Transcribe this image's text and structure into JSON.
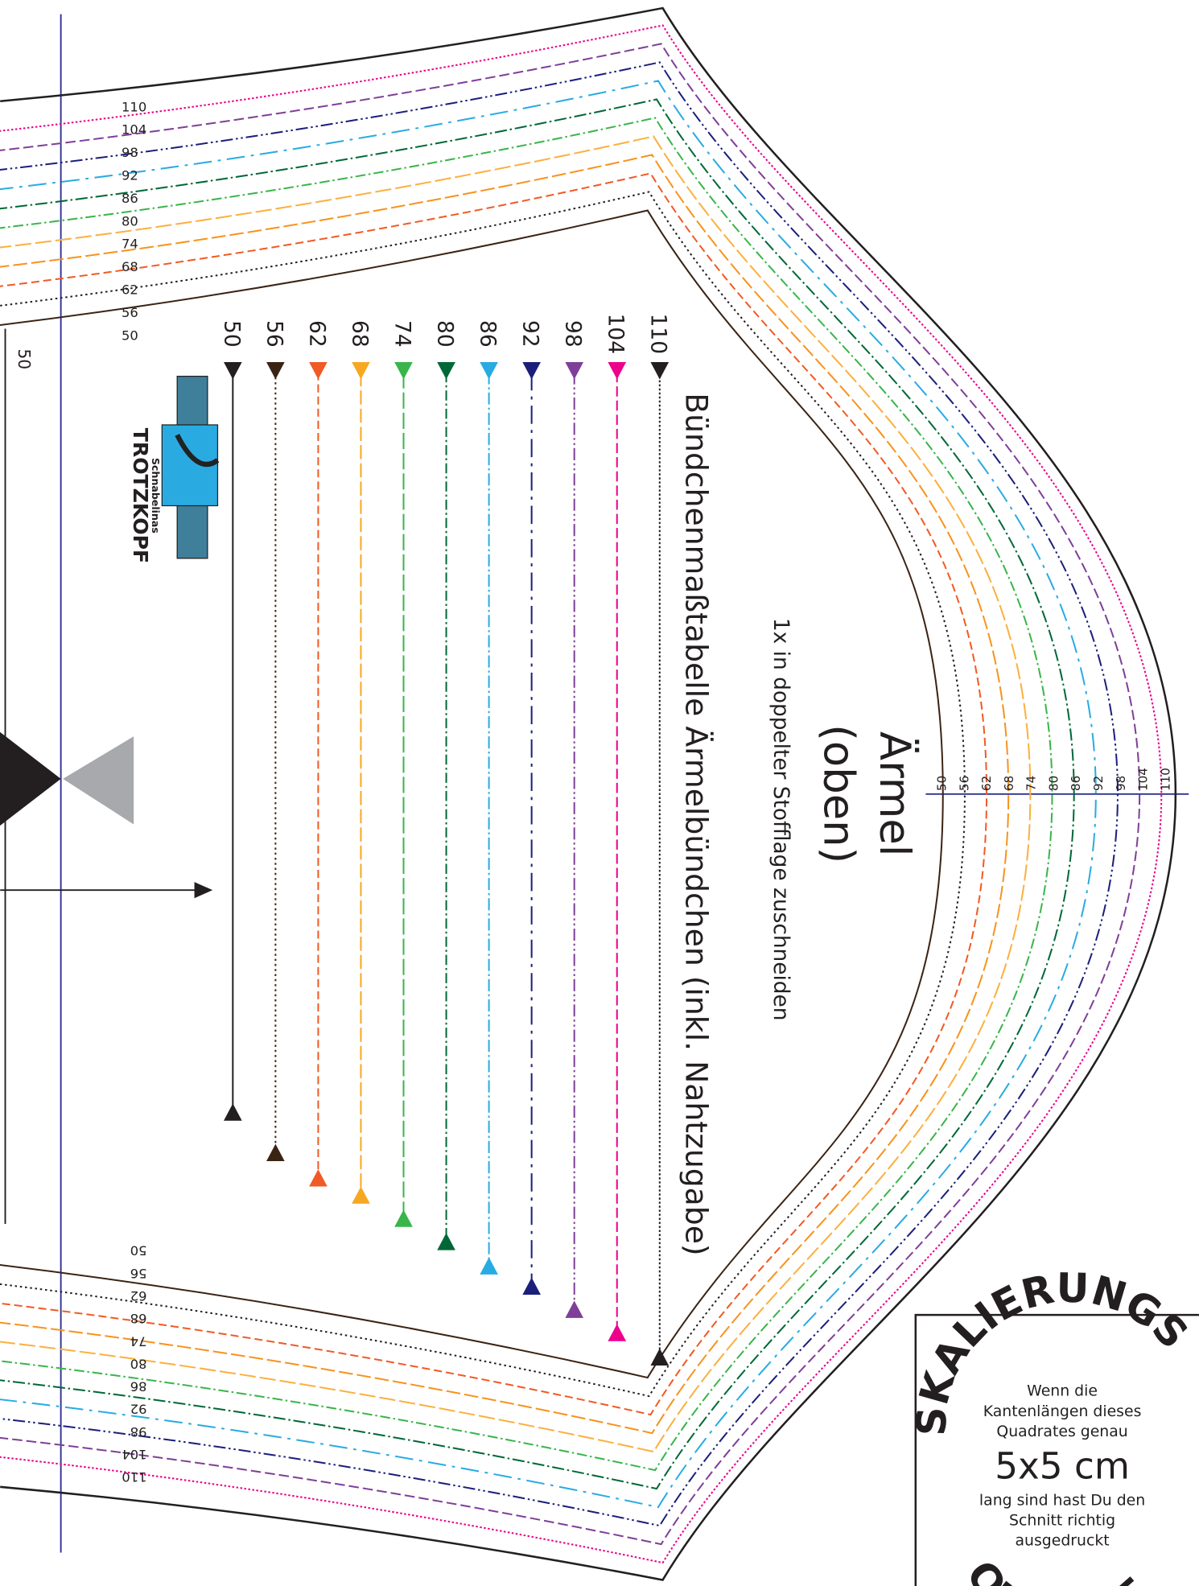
{
  "title": "Ärmel",
  "subtitle": "(oben)",
  "instruction": "1x in doppelter Stofflage zuschneiden",
  "cuff_table_title": "Bündchenmaßtabelle Ärmelbündchen (inkl. Nahtzugabe)",
  "left_label": "50",
  "sizes": [
    "50",
    "56",
    "62",
    "68",
    "74",
    "80",
    "86",
    "92",
    "98",
    "104",
    "110"
  ],
  "cuff_colors": [
    "#231f20",
    "#3b2314",
    "#f15a24",
    "#f7a823",
    "#39b54a",
    "#006837",
    "#29abe2",
    "#1b1f7a",
    "#7f3f98",
    "#ec008c",
    "#231f20"
  ],
  "pattern_lines": [
    {
      "color": "#3b2314",
      "dash": "none"
    },
    {
      "color": "#231f20",
      "dash": "2 3"
    },
    {
      "color": "#f15a24",
      "dash": "8 4"
    },
    {
      "color": "#f7931e",
      "dash": "14 4"
    },
    {
      "color": "#fbb040",
      "dash": "16 4"
    },
    {
      "color": "#39b54a",
      "dash": "10 3 2 3"
    },
    {
      "color": "#006837",
      "dash": "12 3 2 3"
    },
    {
      "color": "#29abe2",
      "dash": "18 6 3 6"
    },
    {
      "color": "#1b1f7a",
      "dash": "12 3 2 3 2 3"
    },
    {
      "color": "#7f3f98",
      "dash": "10 4"
    },
    {
      "color": "#ec008c",
      "dash": "2 2"
    }
  ],
  "logo": {
    "line1": "Schnabelinas",
    "line2": "TROTZKOPF"
  },
  "scale_box": {
    "arc_top": "SKALIERUNGS",
    "lines": [
      "Wenn die",
      "Kantenlängen dieses",
      "Quadrates genau"
    ],
    "size": "5x5 cm",
    "lines2": [
      "lang sind hast Du den",
      "Schnitt richtig",
      "ausgedruckt"
    ],
    "arc_bottom": "QUADRAT"
  }
}
